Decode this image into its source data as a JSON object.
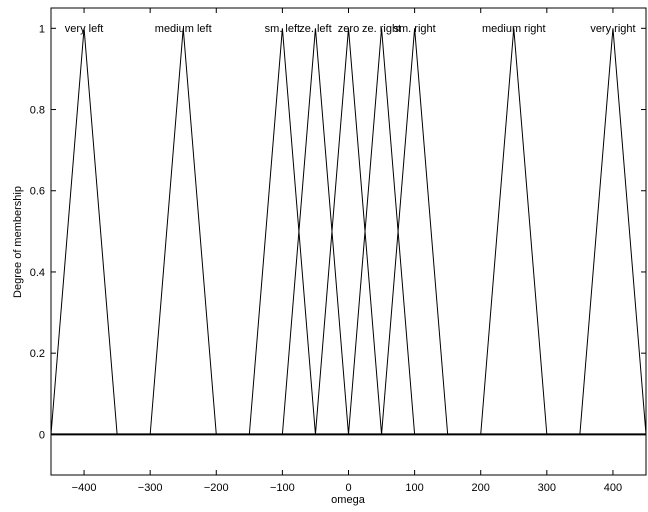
{
  "chart_data": {
    "type": "line",
    "xlabel": "omega",
    "ylabel": "Degree of membership",
    "xlim": [
      -450,
      450
    ],
    "ylim": [
      -0.1,
      1.05
    ],
    "xticks": [
      -400,
      -300,
      -200,
      -100,
      0,
      100,
      200,
      300,
      400
    ],
    "xtick_labels": [
      "−400",
      "−300",
      "−200",
      "−100",
      "0",
      "100",
      "200",
      "300",
      "400"
    ],
    "yticks": [
      0,
      0.2,
      0.4,
      0.6,
      0.8,
      1
    ],
    "ytick_labels": [
      "0",
      "0.2",
      "0.4",
      "0.6",
      "0.8",
      "1"
    ],
    "grid": false,
    "line_color": "#000000",
    "series": [
      {
        "name": "very left",
        "x": [
          -450,
          -400,
          -350
        ],
        "y": [
          0,
          1,
          0
        ]
      },
      {
        "name": "medium left",
        "x": [
          -300,
          -250,
          -200
        ],
        "y": [
          0,
          1,
          0
        ]
      },
      {
        "name": "sm. left",
        "x": [
          -150,
          -100,
          -50
        ],
        "y": [
          0,
          1,
          0
        ]
      },
      {
        "name": "ze. left",
        "x": [
          -100,
          -50,
          0
        ],
        "y": [
          0,
          1,
          0
        ]
      },
      {
        "name": "zero",
        "x": [
          -50,
          0,
          50
        ],
        "y": [
          0,
          1,
          0
        ]
      },
      {
        "name": "ze. right",
        "x": [
          0,
          50,
          100
        ],
        "y": [
          0,
          1,
          0
        ]
      },
      {
        "name": "sm. right",
        "x": [
          50,
          100,
          150
        ],
        "y": [
          0,
          1,
          0
        ]
      },
      {
        "name": "medium right",
        "x": [
          200,
          250,
          300
        ],
        "y": [
          0,
          1,
          0
        ]
      },
      {
        "name": "very right",
        "x": [
          350,
          400,
          450
        ],
        "y": [
          0,
          1,
          0
        ]
      }
    ],
    "baseline": {
      "x": [
        -450,
        450
      ],
      "y": [
        0,
        0
      ]
    }
  }
}
